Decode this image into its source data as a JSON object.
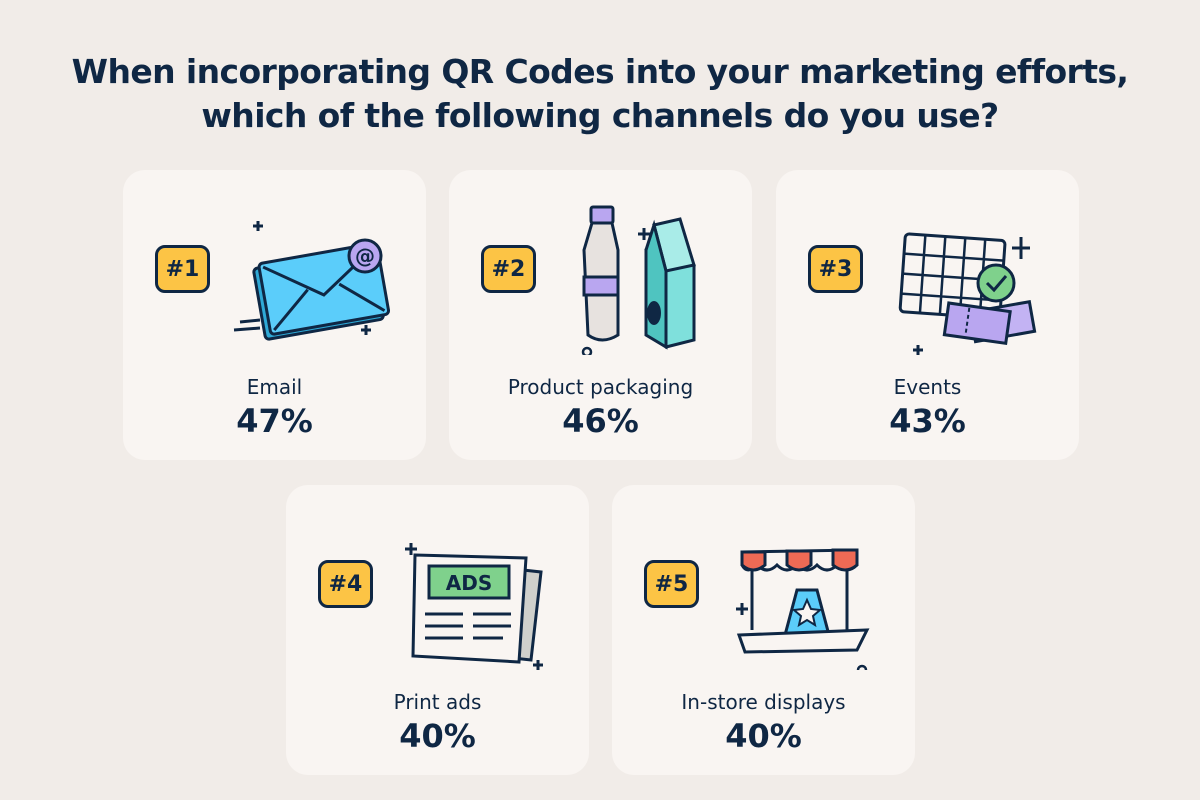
{
  "title_line1": "When incorporating QR Codes into your marketing efforts,",
  "title_line2": "which of the following channels do you use?",
  "colors": {
    "background": "#f1ece8",
    "card": "#f9f5f2",
    "badge": "#fcc445",
    "text": "#0f2744",
    "blue": "#5bcdfa",
    "purple": "#b9a6f0",
    "teal": "#7fe0dc",
    "green": "#7fd18c",
    "red": "#ee6a55"
  },
  "items": [
    {
      "rank": "#1",
      "label": "Email",
      "percent": "47%",
      "icon": "envelope-at-icon"
    },
    {
      "rank": "#2",
      "label": "Product packaging",
      "percent": "46%",
      "icon": "bottle-carton-icon"
    },
    {
      "rank": "#3",
      "label": "Events",
      "percent": "43%",
      "icon": "calendar-ticket-icon"
    },
    {
      "rank": "#4",
      "label": "Print ads",
      "percent": "40%",
      "icon": "newspaper-ads-icon"
    },
    {
      "rank": "#5",
      "label": "In-store displays",
      "percent": "40%",
      "icon": "storefront-icon"
    }
  ],
  "ads_text": "ADS"
}
